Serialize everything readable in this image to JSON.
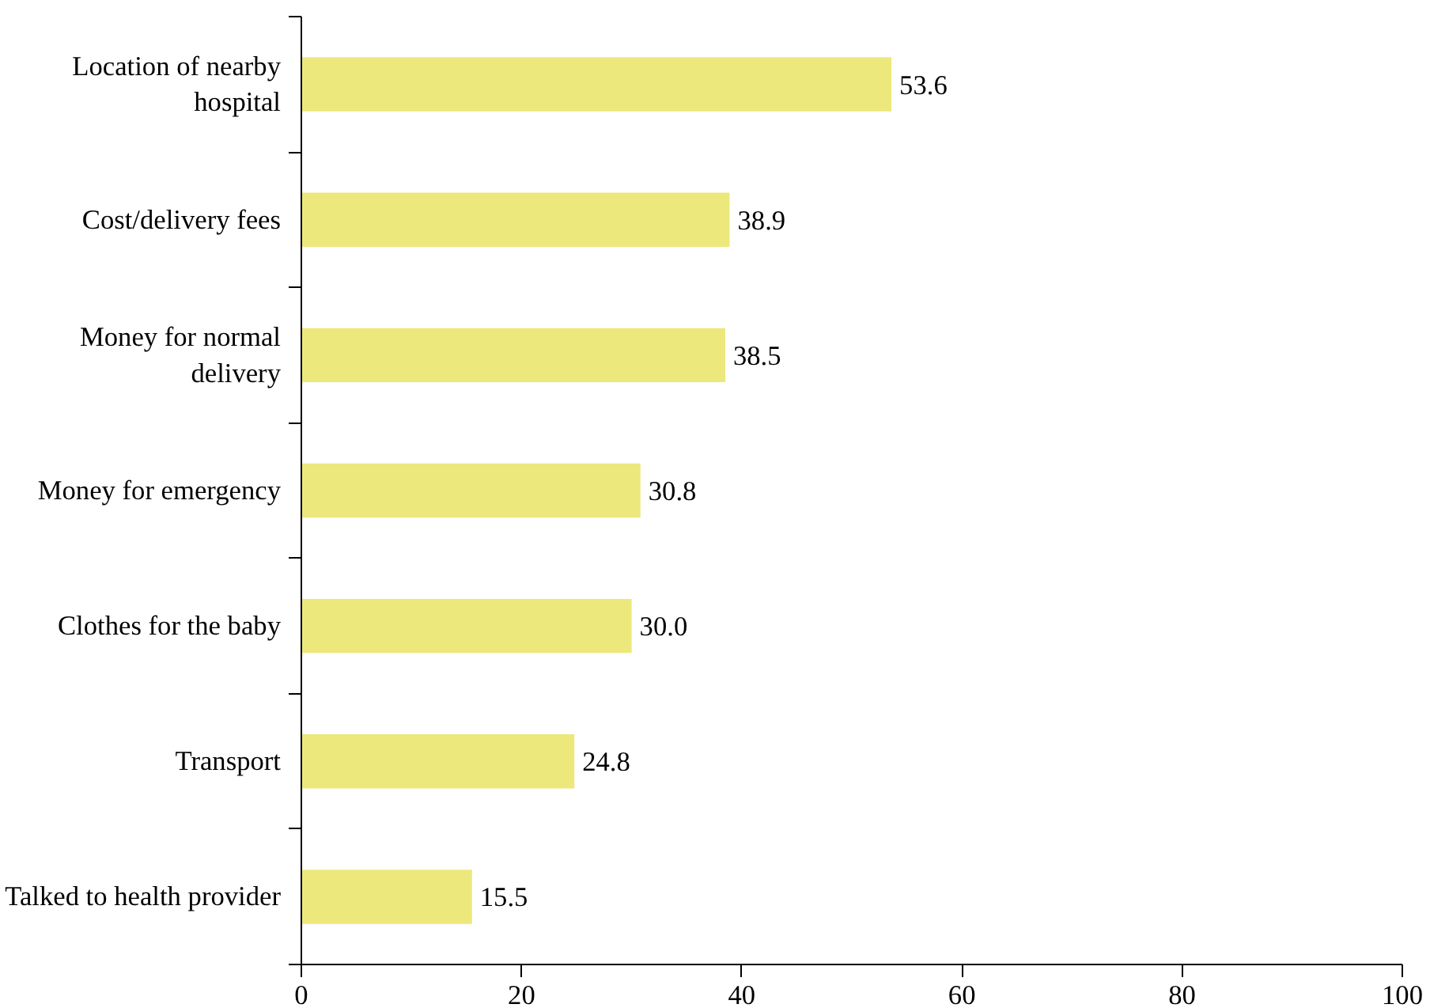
{
  "chart_data": {
    "type": "bar",
    "orientation": "horizontal",
    "categories": [
      "Location of nearby\nhospital",
      "Cost/delivery fees",
      "Money for normal\ndelivery",
      "Money for emergency",
      "Clothes for the baby",
      "Transport",
      "Talked to health provider"
    ],
    "values": [
      53.6,
      38.9,
      38.5,
      30.8,
      30.0,
      24.8,
      15.5
    ],
    "color": "#ece87c",
    "xlim": [
      0,
      100
    ],
    "xticks": [
      0,
      20,
      40,
      60,
      80,
      100
    ],
    "value_labels": [
      "53.6",
      "38.9",
      "38.5",
      "30.8",
      "30.0",
      "24.8",
      "15.5"
    ],
    "grid": false
  }
}
